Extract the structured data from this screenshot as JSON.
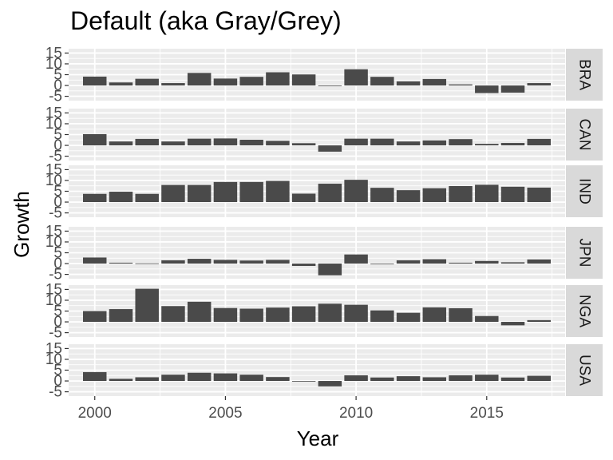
{
  "chart_data": {
    "type": "bar",
    "title": "Default (aka Gray/Grey)",
    "xlabel": "Year",
    "ylabel": "Growth",
    "x_ticks": [
      "2000",
      "2005",
      "2010",
      "2015"
    ],
    "y_ticks": [
      "-5",
      "0",
      "5",
      "10",
      "15"
    ],
    "ylim": [
      -7,
      17
    ],
    "xlim": [
      1999,
      2018
    ],
    "grid": true,
    "panel_background": "#ebebeb",
    "strip_background": "#d9d9d9",
    "bar_color": "#4a4a4a",
    "x": [
      2000,
      2001,
      2002,
      2003,
      2004,
      2005,
      2006,
      2007,
      2008,
      2009,
      2010,
      2011,
      2012,
      2013,
      2014,
      2015,
      2016,
      2017
    ],
    "series": [
      {
        "name": "BRA",
        "values": [
          4.1,
          1.4,
          3.1,
          1.1,
          5.8,
          3.2,
          4.0,
          6.1,
          5.1,
          -0.1,
          7.5,
          4.0,
          1.9,
          3.0,
          0.5,
          -3.5,
          -3.3,
          1.1
        ]
      },
      {
        "name": "CAN",
        "values": [
          5.2,
          1.8,
          3.0,
          1.8,
          3.1,
          3.2,
          2.6,
          2.1,
          1.0,
          -2.9,
          3.1,
          3.1,
          1.8,
          2.3,
          2.9,
          0.7,
          1.1,
          3.0
        ]
      },
      {
        "name": "IND",
        "values": [
          3.8,
          4.8,
          3.8,
          7.9,
          7.9,
          9.3,
          9.3,
          9.8,
          3.9,
          8.5,
          10.3,
          6.6,
          5.5,
          6.4,
          7.4,
          8.0,
          7.1,
          6.7
        ]
      },
      {
        "name": "JPN",
        "values": [
          2.8,
          0.4,
          0.1,
          1.5,
          2.2,
          1.7,
          1.4,
          1.7,
          -1.1,
          -5.4,
          4.2,
          -0.1,
          1.5,
          2.0,
          0.4,
          1.2,
          0.6,
          1.9
        ]
      },
      {
        "name": "NGA",
        "values": [
          5.0,
          5.9,
          15.3,
          7.3,
          9.3,
          6.4,
          6.1,
          6.6,
          7.2,
          8.4,
          7.9,
          5.3,
          4.2,
          6.7,
          6.3,
          2.7,
          -1.6,
          0.8
        ]
      },
      {
        "name": "USA",
        "values": [
          4.1,
          1.0,
          1.7,
          2.9,
          3.8,
          3.5,
          2.9,
          1.8,
          -0.1,
          -2.5,
          2.6,
          1.6,
          2.2,
          1.7,
          2.6,
          2.9,
          1.6,
          2.4
        ]
      }
    ]
  }
}
